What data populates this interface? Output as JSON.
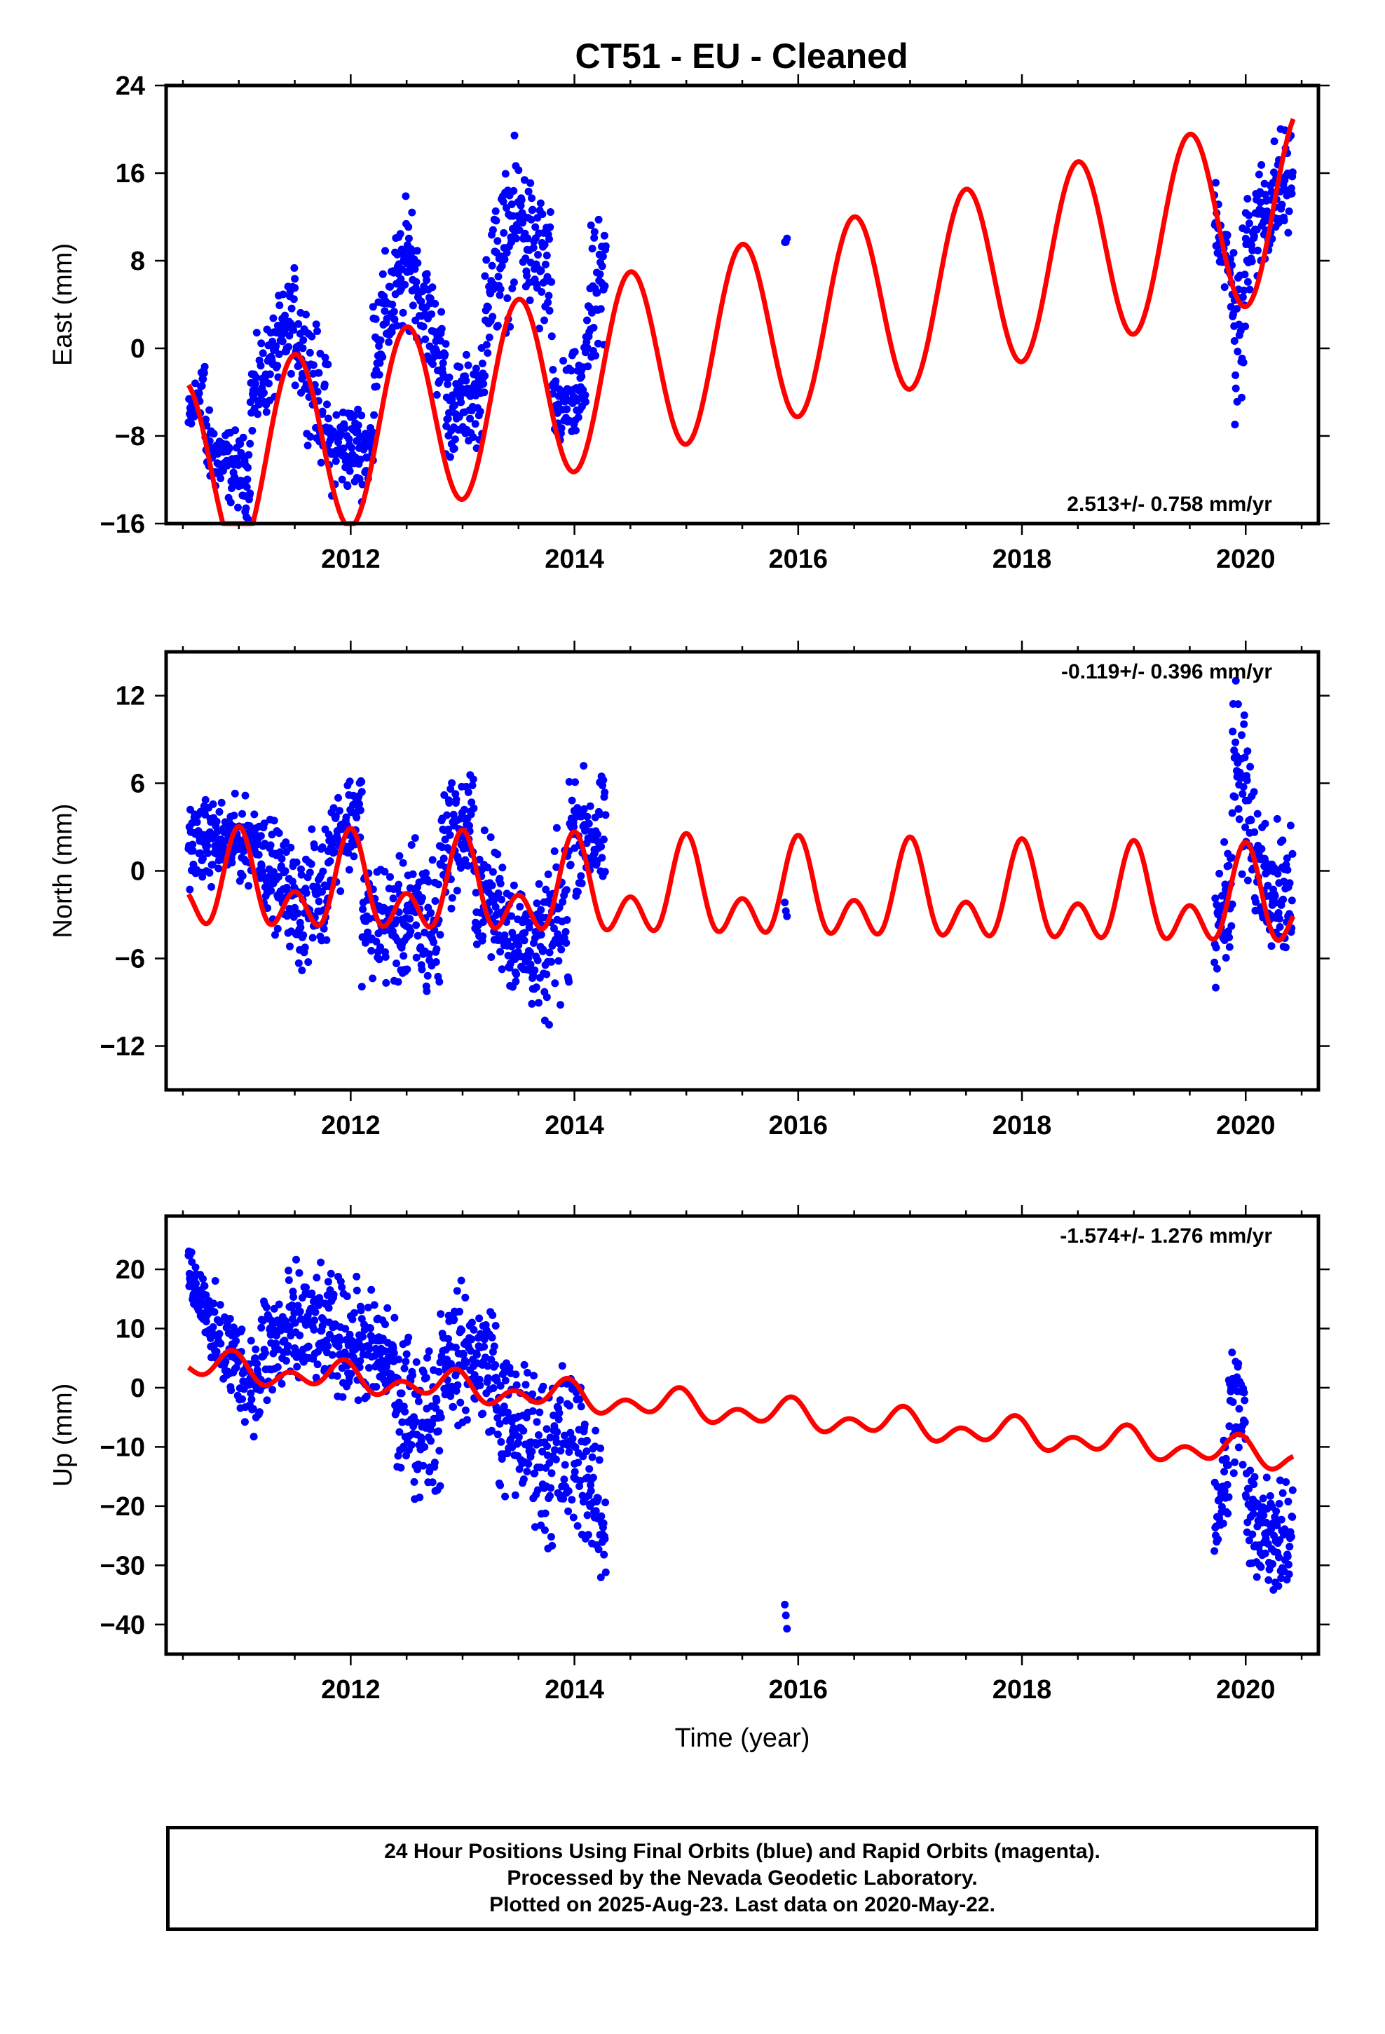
{
  "title": "CT51  - EU - Cleaned",
  "colors": {
    "data": "#0000ff",
    "model": "#ff0000",
    "axis": "#000000"
  },
  "footer": {
    "line1": "24 Hour Positions Using Final Orbits (blue) and Rapid Orbits (magenta).",
    "line2": "Processed by the Nevada Geodetic Laboratory.",
    "line3": "Plotted on 2025-Aug-23. Last data on 2020-May-22."
  },
  "chart_data": [
    {
      "type": "scatter",
      "ylabel": "East (mm)",
      "xlabel": "",
      "rate": "2.513+/- 0.758 mm/yr",
      "rate_position": "bottom-right",
      "xlim": [
        2010.35,
        2020.65
      ],
      "ylim": [
        -16,
        24
      ],
      "xticks": [
        2012,
        2014,
        2016,
        2018,
        2020
      ],
      "yticks": [
        -16,
        -8,
        0,
        8,
        16,
        24
      ],
      "model": {
        "offset": 1.0,
        "rate": 2.513,
        "t0": 2015.5,
        "annual_amp": 8.5,
        "annual_phase": 2019.5
      },
      "segments": [
        {
          "t0": 2010.55,
          "t1": 2010.7,
          "step": 0.005,
          "y": [
            -7,
            -2
          ],
          "spread": 4
        },
        {
          "t0": 2010.7,
          "t1": 2011.1,
          "step": 0.004,
          "y": [
            -9,
            -12
          ],
          "spread": 5
        },
        {
          "t0": 2011.1,
          "t1": 2011.5,
          "step": 0.004,
          "y": [
            -5,
            3
          ],
          "spread": 6
        },
        {
          "t0": 2011.5,
          "t1": 2011.8,
          "step": 0.004,
          "y": [
            2,
            -7
          ],
          "spread": 8
        },
        {
          "t0": 2011.8,
          "t1": 2012.2,
          "step": 0.004,
          "y": [
            -9,
            -9
          ],
          "spread": 6
        },
        {
          "t0": 2012.2,
          "t1": 2012.55,
          "step": 0.004,
          "y": [
            0,
            9
          ],
          "spread": 8
        },
        {
          "t0": 2012.55,
          "t1": 2012.85,
          "step": 0.004,
          "y": [
            7,
            -2
          ],
          "spread": 7
        },
        {
          "t0": 2012.85,
          "t1": 2013.2,
          "step": 0.004,
          "y": [
            -6,
            -4
          ],
          "spread": 6
        },
        {
          "t0": 2013.2,
          "t1": 2013.55,
          "step": 0.004,
          "y": [
            5,
            13
          ],
          "spread": 10
        },
        {
          "t0": 2013.55,
          "t1": 2013.8,
          "step": 0.004,
          "y": [
            10,
            6
          ],
          "spread": 10
        },
        {
          "t0": 2013.8,
          "t1": 2014.1,
          "step": 0.004,
          "y": [
            -6,
            -4
          ],
          "spread": 6
        },
        {
          "t0": 2014.1,
          "t1": 2014.28,
          "step": 0.004,
          "y": [
            2,
            6
          ],
          "spread": 10
        },
        {
          "t0": 2015.88,
          "t1": 2015.9,
          "step": 0.01,
          "y": [
            9.6,
            10
          ],
          "spread": 0.4
        },
        {
          "t0": 2019.72,
          "t1": 2019.9,
          "step": 0.004,
          "y": [
            13,
            5
          ],
          "spread": 6
        },
        {
          "t0": 2019.9,
          "t1": 2020.0,
          "step": 0.004,
          "y": [
            -2,
            5
          ],
          "spread": 12
        },
        {
          "t0": 2020.0,
          "t1": 2020.42,
          "step": 0.004,
          "y": [
            10,
            16
          ],
          "spread": 8
        }
      ]
    },
    {
      "type": "scatter",
      "ylabel": "North (mm)",
      "xlabel": "",
      "rate": "-0.119+/- 0.396 mm/yr",
      "rate_position": "top-right",
      "xlim": [
        2010.35,
        2020.65
      ],
      "ylim": [
        -15,
        15
      ],
      "xticks": [
        2012,
        2014,
        2016,
        2018,
        2020
      ],
      "yticks": [
        -12,
        -6,
        0,
        6,
        12
      ],
      "model": {
        "offset": -1.8,
        "rate": -0.119,
        "t0": 2015.5,
        "annual_amp": 2.2,
        "annual_phase": 2020.0,
        "semi_amp": 2.1,
        "semi_phase": 2020.0
      },
      "segments": [
        {
          "t0": 2010.55,
          "t1": 2011.2,
          "step": 0.004,
          "y": [
            2,
            2
          ],
          "spread": 4
        },
        {
          "t0": 2011.2,
          "t1": 2011.5,
          "step": 0.004,
          "y": [
            1,
            -2
          ],
          "spread": 5
        },
        {
          "t0": 2011.5,
          "t1": 2011.8,
          "step": 0.004,
          "y": [
            -3,
            -1
          ],
          "spread": 6
        },
        {
          "t0": 2011.8,
          "t1": 2012.1,
          "step": 0.004,
          "y": [
            2,
            4
          ],
          "spread": 5
        },
        {
          "t0": 2012.1,
          "t1": 2012.5,
          "step": 0.004,
          "y": [
            -3,
            -4
          ],
          "spread": 6
        },
        {
          "t0": 2012.5,
          "t1": 2012.8,
          "step": 0.004,
          "y": [
            -3,
            -4
          ],
          "spread": 8
        },
        {
          "t0": 2012.8,
          "t1": 2013.1,
          "step": 0.004,
          "y": [
            2,
            3
          ],
          "spread": 6
        },
        {
          "t0": 2013.1,
          "t1": 2013.4,
          "step": 0.004,
          "y": [
            -1,
            -3
          ],
          "spread": 6
        },
        {
          "t0": 2013.4,
          "t1": 2013.75,
          "step": 0.004,
          "y": [
            -4,
            -6
          ],
          "spread": 6
        },
        {
          "t0": 2013.75,
          "t1": 2013.95,
          "step": 0.004,
          "y": [
            -5,
            -3
          ],
          "spread": 9
        },
        {
          "t0": 2013.95,
          "t1": 2014.28,
          "step": 0.004,
          "y": [
            3,
            2
          ],
          "spread": 6
        },
        {
          "t0": 2015.88,
          "t1": 2015.9,
          "step": 0.01,
          "y": [
            -2.2,
            -3.2
          ],
          "spread": 0.4
        },
        {
          "t0": 2019.72,
          "t1": 2019.88,
          "step": 0.004,
          "y": [
            -5,
            0
          ],
          "spread": 6
        },
        {
          "t0": 2019.88,
          "t1": 2020.05,
          "step": 0.004,
          "y": [
            8,
            3
          ],
          "spread": 10
        },
        {
          "t0": 2020.05,
          "t1": 2020.42,
          "step": 0.004,
          "y": [
            1,
            -2
          ],
          "spread": 6
        }
      ]
    },
    {
      "type": "scatter",
      "ylabel": "Up (mm)",
      "xlabel": "Time (year)",
      "rate": "-1.574+/- 1.276 mm/yr",
      "rate_position": "top-right",
      "xlim": [
        2010.35,
        2020.65
      ],
      "ylim": [
        -45,
        29
      ],
      "xticks": [
        2012,
        2014,
        2016,
        2018,
        2020
      ],
      "yticks": [
        -40,
        -30,
        -20,
        -10,
        0,
        10,
        20
      ],
      "model": {
        "offset": -4.0,
        "rate": -1.574,
        "t0": 2015.5,
        "annual_amp": 1.5,
        "annual_phase": 2019.9,
        "semi_amp": 1.7,
        "semi_phase": 2019.95
      },
      "segments": [
        {
          "t0": 2010.55,
          "t1": 2010.75,
          "step": 0.003,
          "y": [
            20,
            12
          ],
          "spread": 7
        },
        {
          "t0": 2010.75,
          "t1": 2011.2,
          "step": 0.004,
          "y": [
            9,
            0
          ],
          "spread": 12
        },
        {
          "t0": 2011.2,
          "t1": 2011.6,
          "step": 0.004,
          "y": [
            6,
            10
          ],
          "spread": 16
        },
        {
          "t0": 2011.6,
          "t1": 2012.0,
          "step": 0.004,
          "y": [
            10,
            8
          ],
          "spread": 14
        },
        {
          "t0": 2012.0,
          "t1": 2012.4,
          "step": 0.004,
          "y": [
            8,
            4
          ],
          "spread": 14
        },
        {
          "t0": 2012.4,
          "t1": 2012.8,
          "step": 0.004,
          "y": [
            -4,
            -6
          ],
          "spread": 18
        },
        {
          "t0": 2012.8,
          "t1": 2013.3,
          "step": 0.004,
          "y": [
            6,
            4
          ],
          "spread": 16
        },
        {
          "t0": 2013.3,
          "t1": 2013.7,
          "step": 0.004,
          "y": [
            -5,
            -10
          ],
          "spread": 18
        },
        {
          "t0": 2013.7,
          "t1": 2014.1,
          "step": 0.004,
          "y": [
            -12,
            -10
          ],
          "spread": 22
        },
        {
          "t0": 2014.1,
          "t1": 2014.28,
          "step": 0.004,
          "y": [
            -15,
            -25
          ],
          "spread": 16
        },
        {
          "t0": 2015.88,
          "t1": 2015.9,
          "step": 0.01,
          "y": [
            -36.5,
            -40.5
          ],
          "spread": 0.5
        },
        {
          "t0": 2019.72,
          "t1": 2019.85,
          "step": 0.004,
          "y": [
            -22,
            -15
          ],
          "spread": 14
        },
        {
          "t0": 2019.85,
          "t1": 2020.0,
          "step": 0.004,
          "y": [
            -2,
            -5
          ],
          "spread": 16
        },
        {
          "t0": 2020.0,
          "t1": 2020.42,
          "step": 0.004,
          "y": [
            -22,
            -25
          ],
          "spread": 16
        }
      ]
    }
  ]
}
